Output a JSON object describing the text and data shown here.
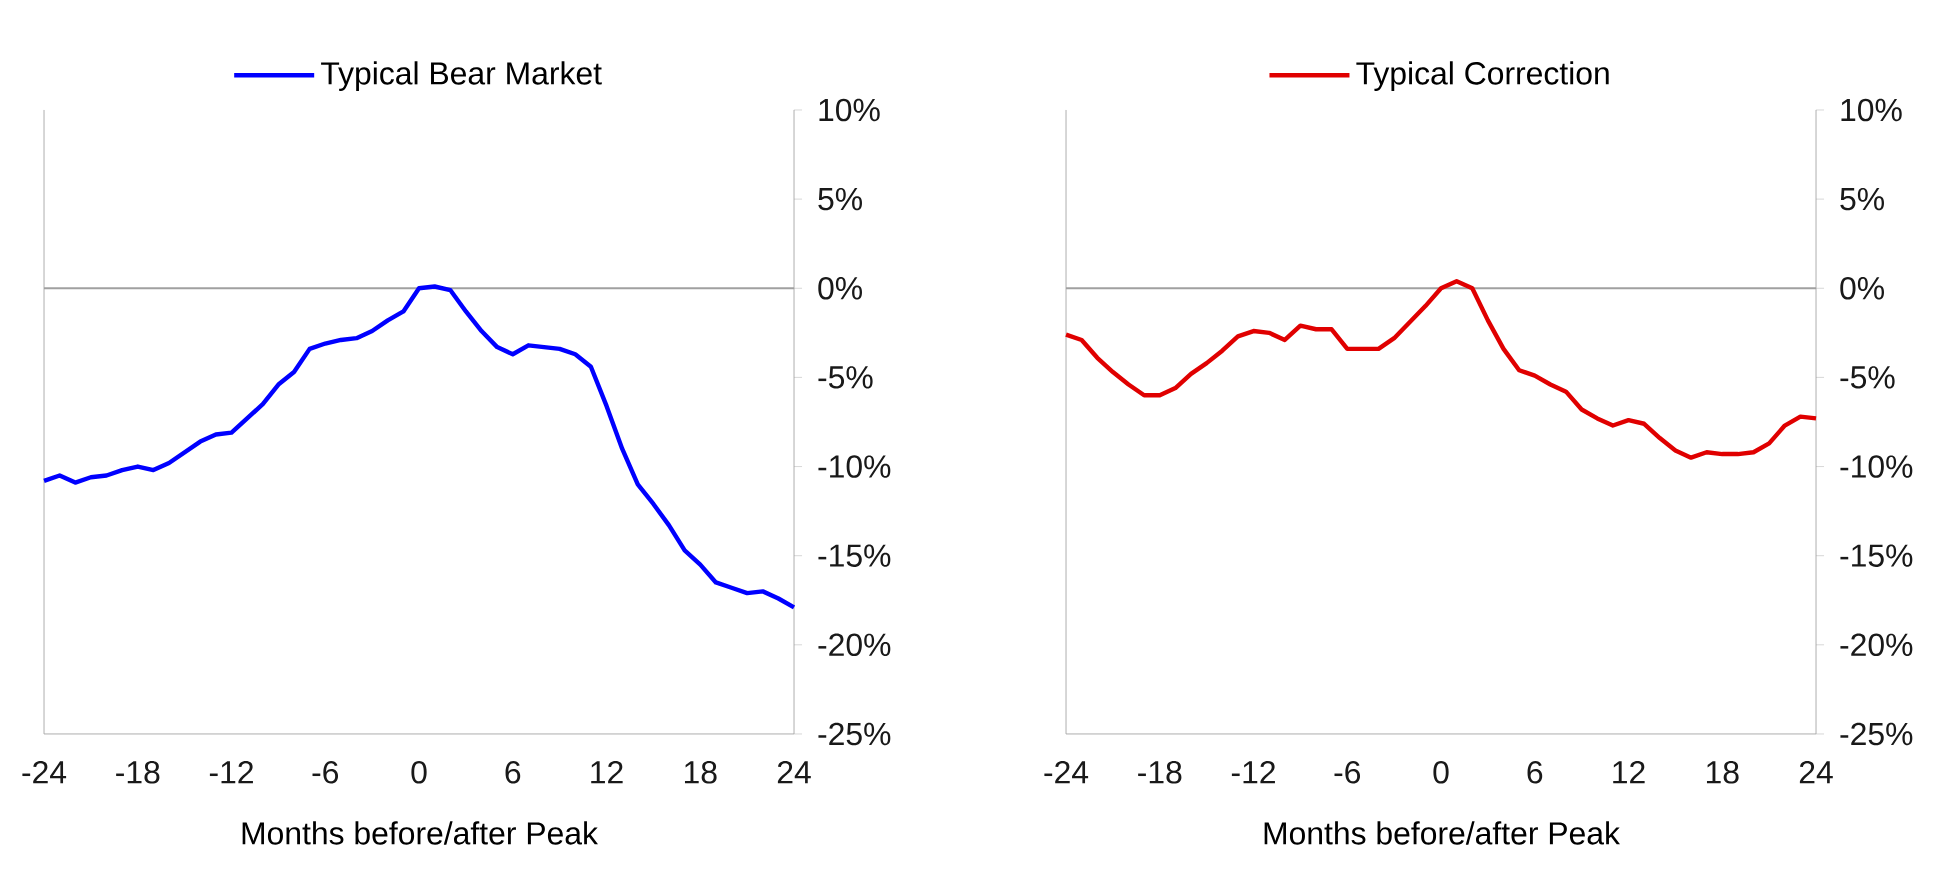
{
  "chart_data": [
    {
      "type": "line",
      "xlabel": "Months before/after Peak",
      "legend": "top",
      "x": [
        -24,
        -23,
        -22,
        -21,
        -20,
        -19,
        -18,
        -17,
        -16,
        -15,
        -14,
        -13,
        -12,
        -11,
        -10,
        -9,
        -8,
        -7,
        -6,
        -5,
        -4,
        -3,
        -2,
        -1,
        0,
        1,
        2,
        3,
        4,
        5,
        6,
        7,
        8,
        9,
        10,
        11,
        12,
        13,
        14,
        15,
        16,
        17,
        18,
        19,
        20,
        21,
        22,
        23,
        24
      ],
      "series": [
        {
          "name": "Typical Bear Market",
          "color": "#0000ff",
          "values": [
            -10.8,
            -10.5,
            -10.9,
            -10.6,
            -10.5,
            -10.2,
            -10.0,
            -10.2,
            -9.8,
            -9.2,
            -8.6,
            -8.2,
            -8.1,
            -7.3,
            -6.5,
            -5.4,
            -4.7,
            -3.4,
            -3.1,
            -2.9,
            -2.8,
            -2.4,
            -1.8,
            -1.3,
            0.0,
            0.1,
            -0.1,
            -1.3,
            -2.4,
            -3.3,
            -3.7,
            -3.2,
            -3.3,
            -3.4,
            -3.7,
            -4.4,
            -6.6,
            -9.0,
            -11.0,
            -12.1,
            -13.3,
            -14.7,
            -15.5,
            -16.5,
            -16.8,
            -17.1,
            -17.0,
            -17.4,
            -17.9
          ]
        }
      ],
      "xlim": [
        -24,
        24
      ],
      "xticks": [
        -24,
        -18,
        -12,
        -6,
        0,
        6,
        12,
        18,
        24
      ],
      "ylim": [
        -25,
        10
      ],
      "yticks": [
        {
          "value": -25,
          "label": "-25%"
        },
        {
          "value": -20,
          "label": "-20%"
        },
        {
          "value": -15,
          "label": "-15%"
        },
        {
          "value": -10,
          "label": "-10%"
        },
        {
          "value": -5,
          "label": "-5%"
        },
        {
          "value": 0,
          "label": "0%"
        },
        {
          "value": 5,
          "label": "5%"
        },
        {
          "value": 10,
          "label": "10%"
        }
      ],
      "ref_lines": [
        {
          "axis": "y",
          "value": 0,
          "color": "#a0a0a0"
        }
      ]
    },
    {
      "type": "line",
      "xlabel": "Months before/after Peak",
      "legend": "top",
      "x": [
        -24,
        -23,
        -22,
        -21,
        -20,
        -19,
        -18,
        -17,
        -16,
        -15,
        -14,
        -13,
        -12,
        -11,
        -10,
        -9,
        -8,
        -7,
        -6,
        -5,
        -4,
        -3,
        -2,
        -1,
        0,
        1,
        2,
        3,
        4,
        5,
        6,
        7,
        8,
        9,
        10,
        11,
        12,
        13,
        14,
        15,
        16,
        17,
        18,
        19,
        20,
        21,
        22,
        23,
        24
      ],
      "series": [
        {
          "name": "Typical Correction",
          "color": "#e00000",
          "values": [
            -2.6,
            -2.9,
            -3.9,
            -4.7,
            -5.4,
            -6.0,
            -6.0,
            -5.6,
            -4.8,
            -4.2,
            -3.5,
            -2.7,
            -2.4,
            -2.5,
            -2.9,
            -2.1,
            -2.3,
            -2.3,
            -3.4,
            -3.4,
            -3.4,
            -2.8,
            -1.9,
            -1.0,
            0.0,
            0.4,
            0.0,
            -1.8,
            -3.4,
            -4.6,
            -4.9,
            -5.4,
            -5.8,
            -6.8,
            -7.3,
            -7.7,
            -7.4,
            -7.6,
            -8.4,
            -9.1,
            -9.5,
            -9.2,
            -9.3,
            -9.3,
            -9.2,
            -8.7,
            -7.7,
            -7.2,
            -7.3
          ]
        }
      ],
      "xlim": [
        -24,
        24
      ],
      "xticks": [
        -24,
        -18,
        -12,
        -6,
        0,
        6,
        12,
        18,
        24
      ],
      "ylim": [
        -25,
        10
      ],
      "yticks": [
        {
          "value": -25,
          "label": "-25%"
        },
        {
          "value": -20,
          "label": "-20%"
        },
        {
          "value": -15,
          "label": "-15%"
        },
        {
          "value": -10,
          "label": "-10%"
        },
        {
          "value": -5,
          "label": "-5%"
        },
        {
          "value": 0,
          "label": "0%"
        },
        {
          "value": 5,
          "label": "5%"
        },
        {
          "value": 10,
          "label": "10%"
        }
      ],
      "ref_lines": [
        {
          "axis": "y",
          "value": 0,
          "color": "#a0a0a0"
        }
      ]
    }
  ]
}
